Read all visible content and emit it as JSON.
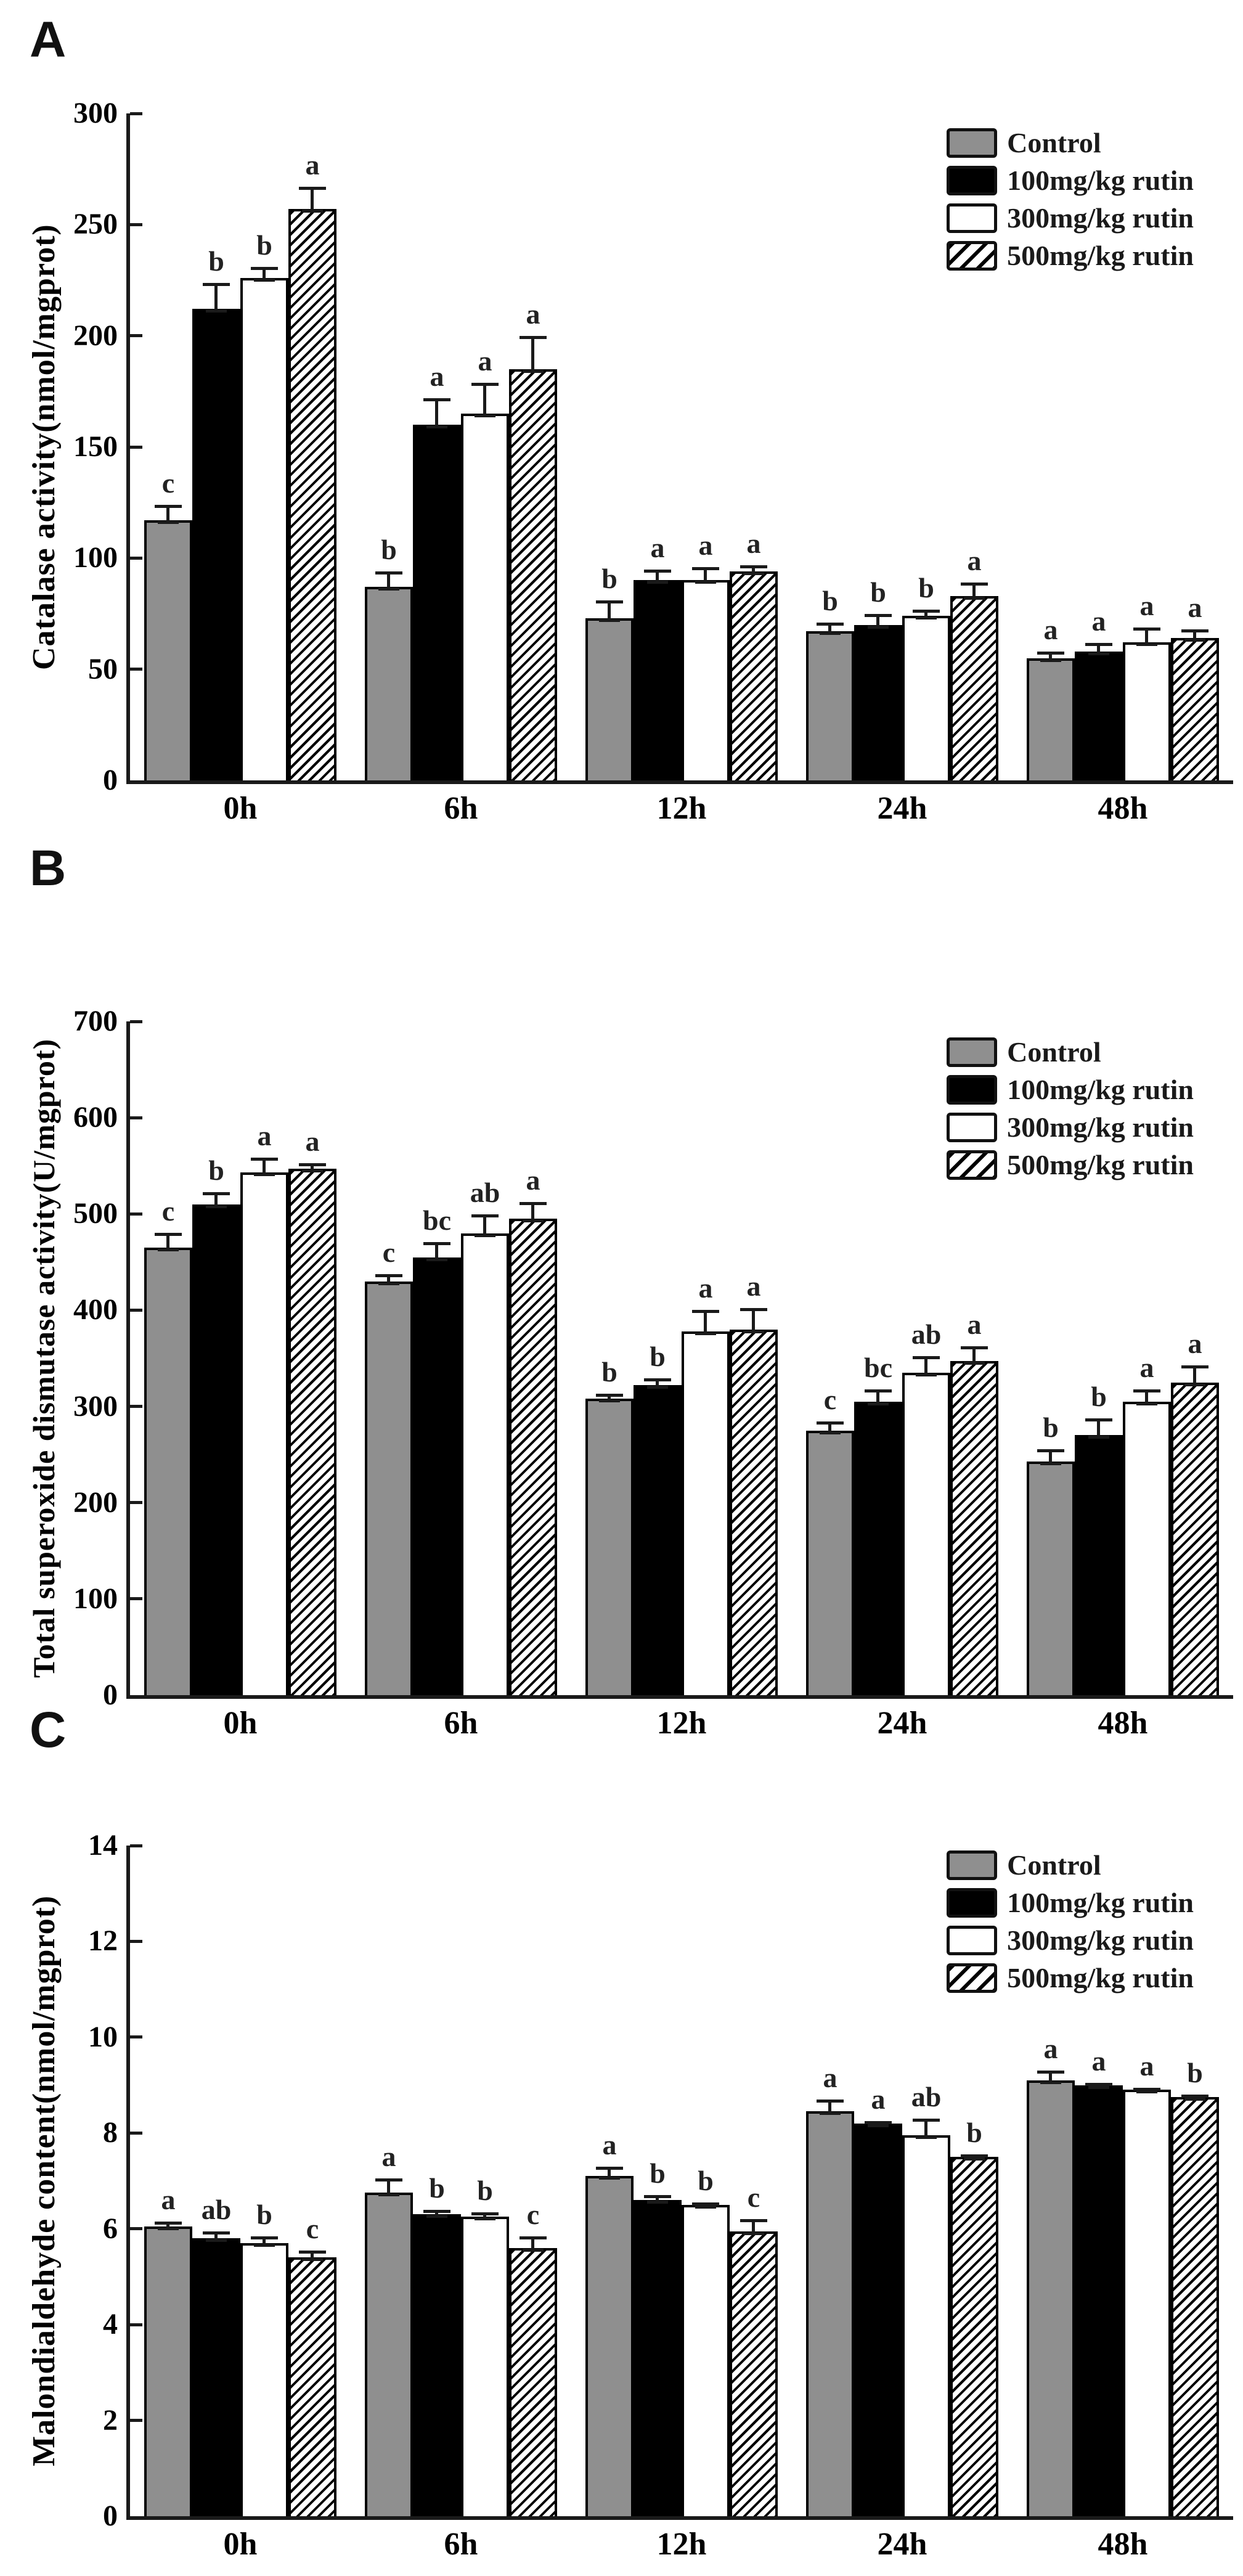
{
  "figure_title": "",
  "colors": {
    "control_fill": "#8f8f8f",
    "rutin100_fill": "#000000",
    "rutin300_fill": "#ffffff",
    "hatch_stroke": "#000000",
    "axis": "#1a1a1a"
  },
  "chart_data": [
    {
      "type": "bar",
      "panel_label": "A",
      "title": "",
      "ylabel": "Catalase activity(nmol/mgprot)",
      "xlabel": "",
      "ylim": [
        0,
        300
      ],
      "ytick_step": 50,
      "grid": false,
      "legend_position": "top-right",
      "categories": [
        "0h",
        "6h",
        "12h",
        "24h",
        "48h"
      ],
      "series": [
        {
          "name": "Control",
          "pattern": "gray",
          "values": [
            117,
            87,
            73,
            67,
            55
          ],
          "errors": [
            8,
            8,
            9,
            5,
            4
          ],
          "letters": [
            "c",
            "b",
            "b",
            "b",
            "a"
          ]
        },
        {
          "name": "100mg/kg rutin",
          "pattern": "black",
          "values": [
            212,
            160,
            90,
            70,
            58
          ],
          "errors": [
            13,
            13,
            6,
            6,
            5
          ],
          "letters": [
            "b",
            "a",
            "a",
            "b",
            "a"
          ]
        },
        {
          "name": "300mg/kg rutin",
          "pattern": "white",
          "values": [
            226,
            165,
            90,
            74,
            62
          ],
          "errors": [
            6,
            15,
            7,
            4,
            8
          ],
          "letters": [
            "b",
            "a",
            "a",
            "b",
            "a"
          ]
        },
        {
          "name": "500mg/kg rutin",
          "pattern": "hatch",
          "values": [
            257,
            185,
            94,
            83,
            64
          ],
          "errors": [
            11,
            16,
            4,
            7,
            5
          ],
          "letters": [
            "a",
            "a",
            "a",
            "a",
            "a"
          ]
        }
      ]
    },
    {
      "type": "bar",
      "panel_label": "B",
      "title": "",
      "ylabel": "Total superoxide dismutase activity(U/mgprot)",
      "xlabel": "",
      "ylim": [
        0,
        700
      ],
      "ytick_step": 100,
      "grid": false,
      "legend_position": "top-right",
      "categories": [
        "0h",
        "6h",
        "12h",
        "24h",
        "48h"
      ],
      "series": [
        {
          "name": "Control",
          "pattern": "gray",
          "values": [
            465,
            430,
            308,
            275,
            243
          ],
          "errors": [
            18,
            10,
            8,
            12,
            15
          ],
          "letters": [
            "c",
            "c",
            "b",
            "c",
            "b"
          ]
        },
        {
          "name": "100mg/kg rutin",
          "pattern": "black",
          "values": [
            510,
            455,
            322,
            305,
            270
          ],
          "errors": [
            15,
            18,
            10,
            15,
            20
          ],
          "letters": [
            "b",
            "bc",
            "b",
            "bc",
            "b"
          ]
        },
        {
          "name": "300mg/kg rutin",
          "pattern": "white",
          "values": [
            543,
            480,
            378,
            335,
            305
          ],
          "errors": [
            18,
            22,
            25,
            20,
            15
          ],
          "letters": [
            "a",
            "ab",
            "a",
            "ab",
            "a"
          ]
        },
        {
          "name": "500mg/kg rutin",
          "pattern": "hatch",
          "values": [
            547,
            495,
            380,
            347,
            325
          ],
          "errors": [
            8,
            20,
            25,
            18,
            20
          ],
          "letters": [
            "a",
            "a",
            "a",
            "a",
            "a"
          ]
        }
      ]
    },
    {
      "type": "bar",
      "panel_label": "C",
      "title": "",
      "ylabel": "Malondialdehyde content(nmol/mgprot)",
      "xlabel": "",
      "ylim": [
        0,
        14
      ],
      "ytick_step": 2,
      "grid": false,
      "legend_position": "top-right",
      "categories": [
        "0h",
        "6h",
        "12h",
        "24h",
        "48h"
      ],
      "series": [
        {
          "name": "Control",
          "pattern": "gray",
          "values": [
            6.05,
            6.75,
            7.1,
            8.45,
            9.1
          ],
          "errors": [
            0.15,
            0.35,
            0.25,
            0.3,
            0.25
          ],
          "letters": [
            "a",
            "a",
            "a",
            "a",
            "a"
          ]
        },
        {
          "name": "100mg/kg rutin",
          "pattern": "black",
          "values": [
            5.8,
            6.3,
            6.6,
            8.2,
            9.0
          ],
          "errors": [
            0.2,
            0.15,
            0.15,
            0.1,
            0.1
          ],
          "letters": [
            "ab",
            "b",
            "b",
            "a",
            "a"
          ]
        },
        {
          "name": "300mg/kg rutin",
          "pattern": "white",
          "values": [
            5.7,
            6.25,
            6.5,
            7.95,
            8.9
          ],
          "errors": [
            0.2,
            0.15,
            0.1,
            0.4,
            0.1
          ],
          "letters": [
            "b",
            "b",
            "b",
            "ab",
            "a"
          ]
        },
        {
          "name": "500mg/kg rutin",
          "pattern": "hatch",
          "values": [
            5.4,
            5.6,
            5.95,
            7.5,
            8.75
          ],
          "errors": [
            0.2,
            0.3,
            0.3,
            0.1,
            0.1
          ],
          "letters": [
            "c",
            "c",
            "c",
            "b",
            "b"
          ]
        }
      ]
    }
  ]
}
